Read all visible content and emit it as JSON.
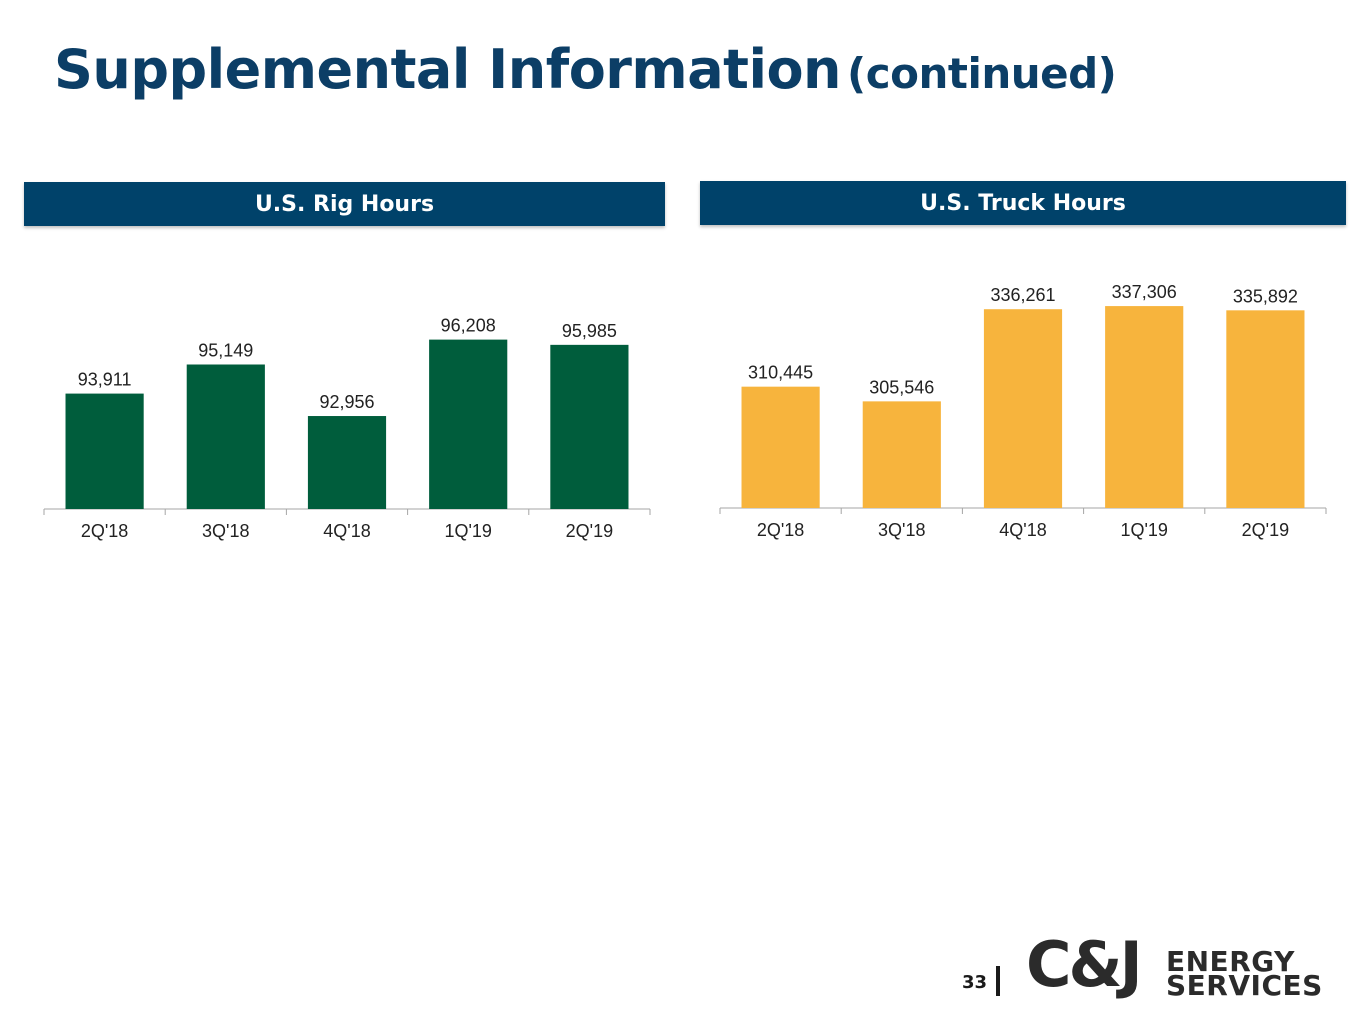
{
  "title": {
    "main": "Supplemental Information",
    "sub": "(continued)"
  },
  "chart_data": [
    {
      "type": "bar",
      "title": "U.S. Rig Hours",
      "categories": [
        "2Q'18",
        "3Q'18",
        "4Q'18",
        "1Q'19",
        "2Q'19"
      ],
      "values": [
        93911,
        95149,
        92956,
        96208,
        95985
      ],
      "value_labels": [
        "93,911",
        "95,149",
        "92,956",
        "96,208",
        "95,985"
      ],
      "ylim": [
        89000,
        97000
      ],
      "color": "#005d3c",
      "xlabel": "",
      "ylabel": ""
    },
    {
      "type": "bar",
      "title": "U.S. Truck Hours",
      "categories": [
        "2Q'18",
        "3Q'18",
        "4Q'18",
        "1Q'19",
        "2Q'19"
      ],
      "values": [
        310445,
        305546,
        336261,
        337306,
        335892
      ],
      "value_labels": [
        "310,445",
        "305,546",
        "336,261",
        "337,306",
        "335,892"
      ],
      "ylim": [
        270000,
        340000
      ],
      "color": "#f7b43d",
      "xlabel": "",
      "ylabel": ""
    }
  ],
  "footer": {
    "page_number": "33",
    "logo_mark": "C&J",
    "logo_line1": "ENERGY",
    "logo_line2": "SERVICES"
  }
}
